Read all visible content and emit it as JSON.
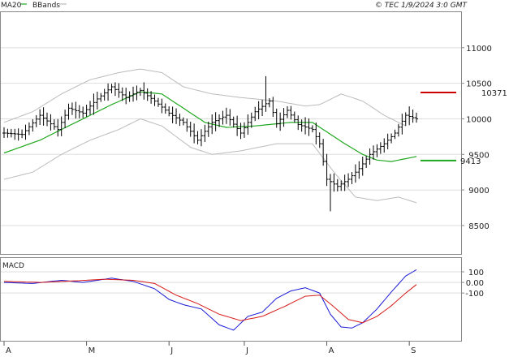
{
  "header": {
    "legend_ma": "MA20",
    "legend_bbands": "BBands",
    "copyright": "© TEC 1/9/2024 3:0 GMT"
  },
  "colors": {
    "ma": "#1fa81f",
    "bbands": "#bbbbbb",
    "price": "#000000",
    "macd": "#1a1ad6",
    "signal": "#d61a1a",
    "resistance": "#cc0000",
    "support": "#1fa81f",
    "grid": "#dddddd"
  },
  "chart_data": [
    {
      "type": "bar",
      "name": "price",
      "ylim": [
        8100,
        11500
      ],
      "yticks": [
        8500,
        9000,
        9500,
        10000,
        10500,
        11000
      ],
      "ytick_labels": [
        "8500",
        "9000",
        "9500",
        "10000",
        "10500",
        "11000"
      ],
      "xlabels": [
        "A",
        "M",
        "J",
        "J",
        "A",
        "S"
      ],
      "xlabel_index": [
        0,
        23,
        46,
        67,
        90,
        113
      ],
      "n_bars": 116,
      "price_keys": [
        [
          0,
          9800
        ],
        [
          5,
          9780
        ],
        [
          10,
          10050
        ],
        [
          15,
          9850
        ],
        [
          18,
          10150
        ],
        [
          22,
          10080
        ],
        [
          26,
          10280
        ],
        [
          30,
          10450
        ],
        [
          34,
          10300
        ],
        [
          38,
          10400
        ],
        [
          42,
          10250
        ],
        [
          46,
          10080
        ],
        [
          50,
          9950
        ],
        [
          54,
          9700
        ],
        [
          58,
          9950
        ],
        [
          62,
          10050
        ],
        [
          66,
          9800
        ],
        [
          70,
          10100
        ],
        [
          74,
          10250
        ],
        [
          76,
          9930
        ],
        [
          79,
          10120
        ],
        [
          82,
          9920
        ],
        [
          86,
          9850
        ],
        [
          88,
          9650
        ],
        [
          90,
          9150
        ],
        [
          93,
          9050
        ],
        [
          96,
          9150
        ],
        [
          99,
          9300
        ],
        [
          102,
          9500
        ],
        [
          106,
          9650
        ],
        [
          109,
          9800
        ],
        [
          112,
          10050
        ],
        [
          115,
          10000
        ]
      ],
      "ma20_keys": [
        [
          0,
          9520
        ],
        [
          10,
          9700
        ],
        [
          20,
          9950
        ],
        [
          30,
          10200
        ],
        [
          38,
          10380
        ],
        [
          44,
          10350
        ],
        [
          50,
          10150
        ],
        [
          56,
          9950
        ],
        [
          62,
          9880
        ],
        [
          70,
          9900
        ],
        [
          80,
          9950
        ],
        [
          86,
          9950
        ],
        [
          89,
          9850
        ],
        [
          95,
          9650
        ],
        [
          100,
          9500
        ],
        [
          104,
          9420
        ],
        [
          108,
          9400
        ],
        [
          112,
          9440
        ],
        [
          115,
          9470
        ]
      ],
      "bb_upper_keys": [
        [
          0,
          9950
        ],
        [
          8,
          10100
        ],
        [
          16,
          10350
        ],
        [
          24,
          10550
        ],
        [
          32,
          10650
        ],
        [
          38,
          10700
        ],
        [
          44,
          10650
        ],
        [
          50,
          10450
        ],
        [
          58,
          10350
        ],
        [
          66,
          10300
        ],
        [
          76,
          10250
        ],
        [
          84,
          10180
        ],
        [
          88,
          10200
        ],
        [
          94,
          10350
        ],
        [
          100,
          10250
        ],
        [
          106,
          10050
        ],
        [
          110,
          9950
        ],
        [
          112,
          9900
        ]
      ],
      "bb_lower_keys": [
        [
          0,
          9150
        ],
        [
          8,
          9250
        ],
        [
          16,
          9500
        ],
        [
          24,
          9700
        ],
        [
          32,
          9850
        ],
        [
          38,
          10000
        ],
        [
          44,
          9900
        ],
        [
          52,
          9600
        ],
        [
          58,
          9500
        ],
        [
          66,
          9550
        ],
        [
          76,
          9650
        ],
        [
          86,
          9650
        ],
        [
          92,
          9250
        ],
        [
          98,
          8900
        ],
        [
          104,
          8850
        ],
        [
          110,
          8900
        ],
        [
          115,
          8820
        ]
      ],
      "resistance": {
        "value": 10371,
        "label": "10371"
      },
      "support": {
        "value": 9413,
        "label": "9413"
      }
    },
    {
      "type": "line",
      "name": "MACD",
      "title": "MACD",
      "ylim": [
        -550,
        230
      ],
      "yticks": [
        100,
        0,
        -100
      ],
      "ytick_labels": [
        "100",
        "0.00",
        "-100"
      ],
      "macd_keys": [
        [
          0,
          0
        ],
        [
          8,
          -10
        ],
        [
          16,
          20
        ],
        [
          22,
          0
        ],
        [
          30,
          40
        ],
        [
          36,
          10
        ],
        [
          42,
          -60
        ],
        [
          46,
          -160
        ],
        [
          50,
          -210
        ],
        [
          55,
          -250
        ],
        [
          60,
          -400
        ],
        [
          64,
          -450
        ],
        [
          68,
          -320
        ],
        [
          72,
          -280
        ],
        [
          76,
          -150
        ],
        [
          80,
          -80
        ],
        [
          84,
          -50
        ],
        [
          88,
          -100
        ],
        [
          91,
          -300
        ],
        [
          94,
          -420
        ],
        [
          97,
          -430
        ],
        [
          100,
          -380
        ],
        [
          104,
          -250
        ],
        [
          108,
          -90
        ],
        [
          112,
          60
        ],
        [
          115,
          120
        ]
      ],
      "signal_keys": [
        [
          0,
          10
        ],
        [
          10,
          0
        ],
        [
          20,
          15
        ],
        [
          28,
          30
        ],
        [
          36,
          20
        ],
        [
          42,
          -10
        ],
        [
          48,
          -120
        ],
        [
          54,
          -200
        ],
        [
          60,
          -300
        ],
        [
          66,
          -360
        ],
        [
          72,
          -320
        ],
        [
          78,
          -230
        ],
        [
          84,
          -130
        ],
        [
          88,
          -120
        ],
        [
          92,
          -230
        ],
        [
          96,
          -350
        ],
        [
          100,
          -380
        ],
        [
          104,
          -320
        ],
        [
          108,
          -220
        ],
        [
          112,
          -100
        ],
        [
          115,
          -20
        ]
      ]
    }
  ]
}
